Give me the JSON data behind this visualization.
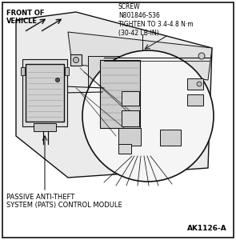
{
  "bg_color": "#ffffff",
  "border_color": "#000000",
  "label_front_of_vehicle": "FRONT OF\nVEHICLE",
  "label_screw": "SCREW\nN801846-S36\nTIGHTEN TO 3.4-4.8 N·m\n(30-42 LB-IN)",
  "label_pats": "PASSIVE ANTI-THEFT\nSYSTEM (PATS) CONTROL MODULE",
  "label_ak": "AK1126-A",
  "fig_width": 2.95,
  "fig_height": 3.0,
  "dpi": 100
}
